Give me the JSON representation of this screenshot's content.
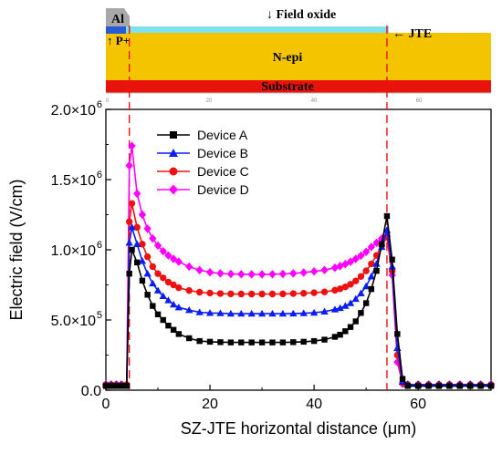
{
  "structure": {
    "labels": {
      "al": "Al",
      "field_oxide": "↓ Field oxide",
      "p_plus": "↑ P+",
      "jte": "← JTE",
      "n_epi": "N-epi",
      "substrate": "Substrate"
    },
    "ruler_ticks": [
      "0",
      "20",
      "40",
      "60"
    ],
    "colors": {
      "n_epi": "#f5c400",
      "substrate": "#e8140c",
      "oxide": "#7fe0ee",
      "p_plus": "#2a5bd7",
      "al": "#a8a8a8"
    }
  },
  "chart_data": {
    "type": "line",
    "title": "",
    "xlabel": "SZ-JTE horizontal distance (μm)",
    "ylabel": "Electric field (V/cm)",
    "xlim": [
      0,
      74
    ],
    "ylim": [
      0,
      2000000
    ],
    "xticks": [
      "0",
      "20",
      "40",
      "60"
    ],
    "yticks": [
      {
        "m": "0.0",
        "e": ""
      },
      {
        "m": "5.0×10",
        "e": "5"
      },
      {
        "m": "1.0×10",
        "e": "6"
      },
      {
        "m": "1.5×10",
        "e": "6"
      },
      {
        "m": "2.0×10",
        "e": "6"
      }
    ],
    "markers_on_structure": [
      4.5,
      54
    ],
    "legend_position": "top-left",
    "series": [
      {
        "name": "Device A",
        "color": "#000000",
        "marker": "square",
        "x": [
          0,
          1,
          2,
          3,
          4,
          4.5,
          5,
          6,
          7,
          8,
          9,
          10,
          11,
          12,
          13,
          14,
          16,
          18,
          20,
          22,
          24,
          26,
          28,
          30,
          32,
          34,
          36,
          38,
          40,
          42,
          44,
          45,
          46,
          47,
          48,
          49,
          50,
          51,
          52,
          53,
          54,
          55,
          56,
          57,
          58,
          60,
          62,
          64,
          66,
          68,
          70,
          72,
          74
        ],
        "y": [
          30000,
          30000,
          30000,
          30000,
          30000,
          830000,
          1000000,
          910000,
          780000,
          680000,
          600000,
          540000,
          500000,
          460000,
          430000,
          400000,
          370000,
          350000,
          345000,
          342000,
          340000,
          340000,
          340000,
          340000,
          340000,
          340000,
          342000,
          345000,
          350000,
          360000,
          380000,
          395000,
          420000,
          450000,
          490000,
          550000,
          620000,
          720000,
          850000,
          1040000,
          1240000,
          930000,
          400000,
          80000,
          30000,
          30000,
          30000,
          30000,
          30000,
          30000,
          30000,
          30000,
          30000
        ]
      },
      {
        "name": "Device B",
        "color": "#0a1df5",
        "marker": "triangle",
        "x": [
          0,
          1,
          2,
          3,
          4,
          4.5,
          5,
          6,
          7,
          8,
          9,
          10,
          11,
          12,
          13,
          14,
          16,
          18,
          20,
          22,
          24,
          26,
          28,
          30,
          32,
          34,
          36,
          38,
          40,
          42,
          44,
          45,
          46,
          47,
          48,
          49,
          50,
          51,
          52,
          53,
          54,
          55,
          56,
          57,
          58,
          60,
          62,
          64,
          66,
          68,
          70,
          72,
          74
        ],
        "y": [
          40000,
          40000,
          40000,
          40000,
          40000,
          1050000,
          1160000,
          1040000,
          920000,
          830000,
          760000,
          710000,
          670000,
          640000,
          610000,
          590000,
          570000,
          555000,
          550000,
          548000,
          545000,
          545000,
          545000,
          545000,
          545000,
          545000,
          546000,
          548000,
          552000,
          560000,
          575000,
          585000,
          600000,
          620000,
          650000,
          690000,
          740000,
          810000,
          900000,
          1020000,
          1140000,
          880000,
          300000,
          60000,
          40000,
          40000,
          40000,
          40000,
          40000,
          40000,
          40000,
          40000,
          40000
        ]
      },
      {
        "name": "Device C",
        "color": "#ee1111",
        "marker": "circle",
        "x": [
          0,
          1,
          2,
          3,
          4,
          4.5,
          5,
          6,
          7,
          8,
          9,
          10,
          11,
          12,
          13,
          14,
          16,
          18,
          20,
          22,
          24,
          26,
          28,
          30,
          32,
          34,
          36,
          38,
          40,
          42,
          44,
          45,
          46,
          47,
          48,
          49,
          50,
          51,
          52,
          53,
          54,
          55,
          56,
          57,
          58,
          60,
          62,
          64,
          66,
          68,
          70,
          72,
          74
        ],
        "y": [
          40000,
          40000,
          40000,
          40000,
          40000,
          1200000,
          1330000,
          1160000,
          1040000,
          950000,
          880000,
          830000,
          800000,
          770000,
          750000,
          730000,
          710000,
          698000,
          692000,
          688000,
          686000,
          685000,
          685000,
          685000,
          685000,
          686000,
          688000,
          690000,
          694000,
          700000,
          712000,
          722000,
          736000,
          754000,
          778000,
          810000,
          850000,
          900000,
          960000,
          1030000,
          1090000,
          850000,
          250000,
          50000,
          40000,
          40000,
          40000,
          40000,
          40000,
          40000,
          40000,
          40000,
          40000
        ]
      },
      {
        "name": "Device D",
        "color": "#ff00ff",
        "marker": "diamond",
        "x": [
          0,
          1,
          2,
          3,
          4,
          4.5,
          5,
          6,
          7,
          8,
          9,
          10,
          11,
          12,
          13,
          14,
          16,
          18,
          20,
          22,
          24,
          26,
          28,
          30,
          32,
          34,
          36,
          38,
          40,
          42,
          44,
          45,
          46,
          47,
          48,
          49,
          50,
          51,
          52,
          53,
          54,
          55,
          56,
          57,
          58,
          60,
          62,
          64,
          66,
          68,
          70,
          72,
          74
        ],
        "y": [
          40000,
          40000,
          40000,
          40000,
          40000,
          1600000,
          1740000,
          1400000,
          1250000,
          1150000,
          1080000,
          1030000,
          990000,
          960000,
          935000,
          915000,
          880000,
          855000,
          840000,
          832000,
          828000,
          826000,
          825000,
          825000,
          826000,
          828000,
          832000,
          838000,
          846000,
          856000,
          872000,
          884000,
          898000,
          915000,
          935000,
          958000,
          985000,
          1020000,
          1050000,
          1080000,
          1100000,
          820000,
          200000,
          45000,
          40000,
          40000,
          40000,
          40000,
          40000,
          40000,
          40000,
          40000,
          40000
        ]
      }
    ]
  }
}
